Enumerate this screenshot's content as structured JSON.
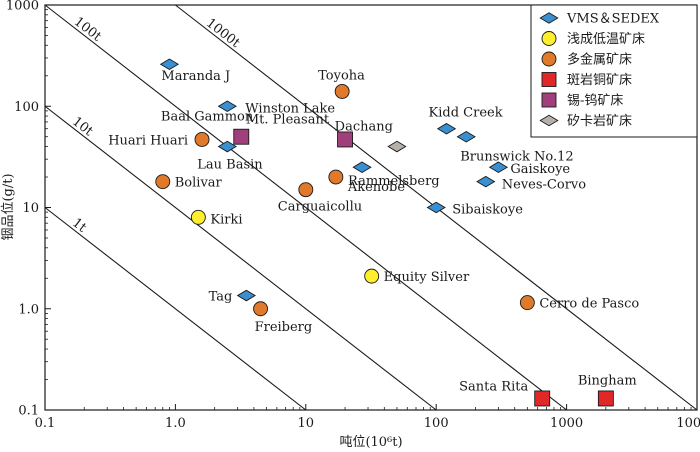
{
  "chart_data": {
    "type": "scatter",
    "title": "",
    "xlabel": "吨位(10⁶t)",
    "ylabel": "铟品位(g/t)",
    "x_scale": "log",
    "y_scale": "log",
    "xlim": [
      0.1,
      10000
    ],
    "ylim": [
      0.1,
      1000
    ],
    "x_ticks": [
      "0.1",
      "1.0",
      "10",
      "100",
      "1000",
      "10000"
    ],
    "y_ticks": [
      "0.1",
      "1.0",
      "10",
      "100",
      "1000"
    ],
    "grid": false,
    "legend_position": "top-right",
    "contours": [
      {
        "label": "1t",
        "metal_tonnes": 1
      },
      {
        "label": "10t",
        "metal_tonnes": 10
      },
      {
        "label": "100t",
        "metal_tonnes": 100
      },
      {
        "label": "1000t",
        "metal_tonnes": 1000
      }
    ],
    "series": [
      {
        "name": "VMS＆SEDEX",
        "marker": "diamond",
        "color": "#3a8fd0",
        "points": [
          {
            "label": "Maranda J",
            "x": 0.9,
            "y": 260
          },
          {
            "label": "Winston Lake",
            "x": 2.5,
            "y": 100
          },
          {
            "label": "Lau Basin",
            "x": 2.5,
            "y": 40
          },
          {
            "label": "Kidd Creek",
            "x": 120,
            "y": 60
          },
          {
            "label": "Brunswick No.12",
            "x": 170,
            "y": 50
          },
          {
            "label": "Rammelsberg",
            "x": 27,
            "y": 25
          },
          {
            "label": "Gaiskoye",
            "x": 300,
            "y": 25
          },
          {
            "label": "Neves-Corvo",
            "x": 240,
            "y": 18
          },
          {
            "label": "Sibaiskoye",
            "x": 100,
            "y": 10
          },
          {
            "label": "Tag",
            "x": 3.5,
            "y": 1.35
          }
        ]
      },
      {
        "name": "浅成低温矿床",
        "marker": "circle",
        "color": "#ffee2e",
        "points": [
          {
            "label": "Kirki",
            "x": 1.5,
            "y": 8
          },
          {
            "label": "Equity Silver",
            "x": 32,
            "y": 2.1
          }
        ]
      },
      {
        "name": "多金属矿床",
        "marker": "circle",
        "color": "#e07a2a",
        "points": [
          {
            "label": "Toyoha",
            "x": 19,
            "y": 140
          },
          {
            "label": "Huari Huari",
            "x": 1.6,
            "y": 47
          },
          {
            "label": "Bolivar",
            "x": 0.8,
            "y": 18
          },
          {
            "label": "Carguaicollu",
            "x": 10,
            "y": 15
          },
          {
            "label": "Akenobe",
            "x": 17,
            "y": 20
          },
          {
            "label": "Freiberg",
            "x": 4.5,
            "y": 1.0
          },
          {
            "label": "Cerro de Pasco",
            "x": 500,
            "y": 1.15
          }
        ]
      },
      {
        "name": "斑岩铜矿床",
        "marker": "square",
        "color": "#e02828",
        "points": [
          {
            "label": "Santa Rita",
            "x": 650,
            "y": 0.13
          },
          {
            "label": "Bingham",
            "x": 2000,
            "y": 0.13
          }
        ]
      },
      {
        "name": "锡-钨矿床",
        "marker": "square",
        "color": "#a0407a",
        "points": [
          {
            "label": "Baal Gammon",
            "x": 3.2,
            "y": 50
          },
          {
            "label": "Mt. Pleasant",
            "x": 20,
            "y": 47
          }
        ]
      },
      {
        "name": "矽卡岩矿床",
        "marker": "diamond",
        "color": "#b5b0ab",
        "points": [
          {
            "label": "Dachang",
            "x": 50,
            "y": 40
          }
        ]
      }
    ]
  }
}
